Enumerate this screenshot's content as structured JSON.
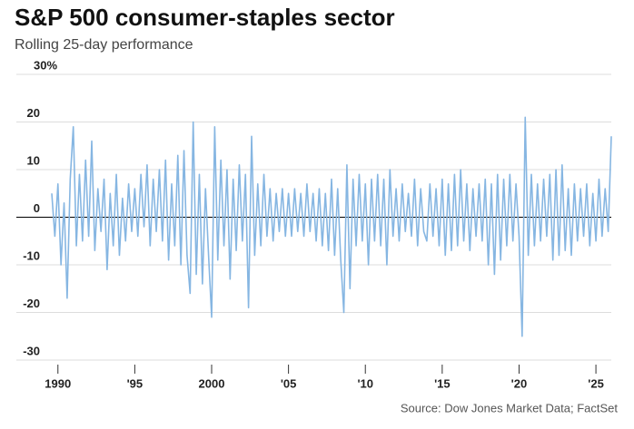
{
  "chart_data": {
    "type": "line",
    "title": "S&P 500 consumer-staples sector",
    "subtitle": "Rolling 25-day performance",
    "source": "Source: Dow Jones Market Data; FactSet",
    "xlim": [
      1989.6,
      2026.0
    ],
    "xticks": [
      1990,
      {
        "value": 1995,
        "label": "'95"
      },
      2000,
      {
        "value": 2005,
        "label": "'05"
      },
      {
        "value": 2010,
        "label": "'10"
      },
      {
        "value": 2015,
        "label": "'15"
      },
      {
        "value": 2020,
        "label": "'20"
      },
      {
        "value": 2025,
        "label": "'25"
      }
    ],
    "ylim": [
      -30,
      30
    ],
    "yticks": [
      {
        "value": 30,
        "label": "30%"
      },
      20,
      10,
      0,
      -10,
      -20,
      -30
    ],
    "grid": true,
    "series": [
      {
        "color": "#86b6e2",
        "x": [
          1989.6,
          1989.8,
          1990.0,
          1990.2,
          1990.4,
          1990.6,
          1990.8,
          1991.0,
          1991.2,
          1991.4,
          1991.6,
          1991.8,
          1992.0,
          1992.2,
          1992.4,
          1992.6,
          1992.8,
          1993.0,
          1993.2,
          1993.4,
          1993.6,
          1993.8,
          1994.0,
          1994.2,
          1994.4,
          1994.6,
          1994.8,
          1995.0,
          1995.2,
          1995.4,
          1995.6,
          1995.8,
          1996.0,
          1996.2,
          1996.4,
          1996.6,
          1996.8,
          1997.0,
          1997.2,
          1997.4,
          1997.6,
          1997.8,
          1998.0,
          1998.2,
          1998.4,
          1998.6,
          1998.8,
          1999.0,
          1999.2,
          1999.4,
          1999.6,
          1999.8,
          2000.0,
          2000.2,
          2000.4,
          2000.6,
          2000.8,
          2001.0,
          2001.2,
          2001.4,
          2001.6,
          2001.8,
          2002.0,
          2002.2,
          2002.4,
          2002.6,
          2002.8,
          2003.0,
          2003.2,
          2003.4,
          2003.6,
          2003.8,
          2004.0,
          2004.2,
          2004.4,
          2004.6,
          2004.8,
          2005.0,
          2005.2,
          2005.4,
          2005.6,
          2005.8,
          2006.0,
          2006.2,
          2006.4,
          2006.6,
          2006.8,
          2007.0,
          2007.2,
          2007.4,
          2007.6,
          2007.8,
          2008.0,
          2008.2,
          2008.4,
          2008.6,
          2008.8,
          2009.0,
          2009.2,
          2009.4,
          2009.6,
          2009.8,
          2010.0,
          2010.2,
          2010.4,
          2010.6,
          2010.8,
          2011.0,
          2011.2,
          2011.4,
          2011.6,
          2011.8,
          2012.0,
          2012.2,
          2012.4,
          2012.6,
          2012.8,
          2013.0,
          2013.2,
          2013.4,
          2013.6,
          2013.8,
          2014.0,
          2014.2,
          2014.4,
          2014.6,
          2014.8,
          2015.0,
          2015.2,
          2015.4,
          2015.6,
          2015.8,
          2016.0,
          2016.2,
          2016.4,
          2016.6,
          2016.8,
          2017.0,
          2017.2,
          2017.4,
          2017.6,
          2017.8,
          2018.0,
          2018.2,
          2018.4,
          2018.6,
          2018.8,
          2019.0,
          2019.2,
          2019.4,
          2019.6,
          2019.8,
          2020.0,
          2020.2,
          2020.4,
          2020.6,
          2020.8,
          2021.0,
          2021.2,
          2021.4,
          2021.6,
          2021.8,
          2022.0,
          2022.2,
          2022.4,
          2022.6,
          2022.8,
          2023.0,
          2023.2,
          2023.4,
          2023.6,
          2023.8,
          2024.0,
          2024.2,
          2024.4,
          2024.6,
          2024.8,
          2025.0,
          2025.2,
          2025.4,
          2025.6,
          2025.8,
          2026.0
        ],
        "values": [
          5,
          -4,
          7,
          -10,
          3,
          -17,
          8,
          19,
          -6,
          9,
          -5,
          12,
          -4,
          16,
          -7,
          6,
          -3,
          8,
          -11,
          5,
          -6,
          9,
          -8,
          4,
          -5,
          7,
          -3,
          6,
          -4,
          9,
          -2,
          11,
          -6,
          8,
          -3,
          10,
          -5,
          12,
          -9,
          7,
          -6,
          13,
          -10,
          14,
          -8,
          -16,
          20,
          -12,
          9,
          -14,
          6,
          -8,
          -21,
          19,
          -9,
          12,
          -6,
          10,
          -13,
          8,
          -7,
          11,
          -5,
          9,
          -19,
          17,
          -8,
          7,
          -6,
          9,
          -4,
          6,
          -5,
          5,
          -3,
          6,
          -4,
          5,
          -4,
          6,
          -3,
          5,
          -4,
          7,
          -3,
          5,
          -5,
          6,
          -6,
          5,
          -7,
          8,
          -8,
          6,
          -9,
          -20,
          11,
          -15,
          8,
          -6,
          9,
          -5,
          7,
          -10,
          8,
          -5,
          9,
          -6,
          8,
          -10,
          10,
          -4,
          6,
          -5,
          7,
          -3,
          5,
          -4,
          8,
          -6,
          6,
          -3,
          -5,
          7,
          -4,
          6,
          -6,
          8,
          -8,
          7,
          -7,
          9,
          -6,
          10,
          -5,
          7,
          -7,
          6,
          -4,
          7,
          -5,
          8,
          -10,
          7,
          -12,
          9,
          -9,
          8,
          -6,
          9,
          -5,
          7,
          -4,
          -25,
          21,
          -8,
          9,
          -6,
          7,
          -5,
          8,
          -4,
          9,
          -9,
          10,
          -8,
          11,
          -7,
          6,
          -8,
          7,
          -5,
          6,
          -4,
          7,
          -6,
          5,
          -5,
          8,
          -4,
          6,
          -3,
          17
        ]
      }
    ]
  }
}
